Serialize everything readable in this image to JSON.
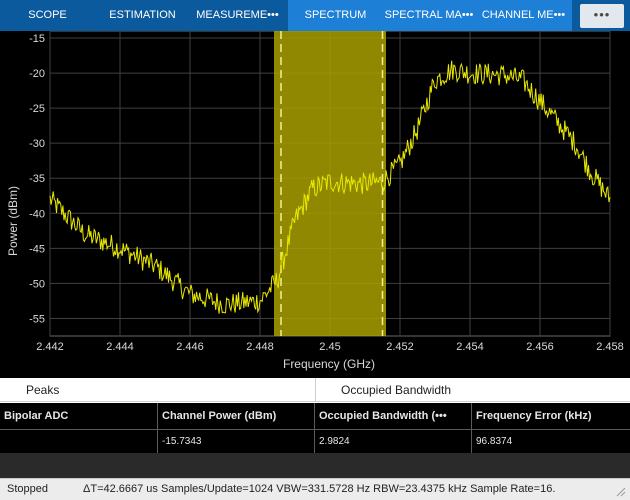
{
  "toolstrip": {
    "tabs": [
      {
        "label": "SCOPE"
      },
      {
        "label": "ESTIMATION"
      },
      {
        "label": "MEASUREME•••"
      },
      {
        "label": "SPECTRUM"
      },
      {
        "label": "SPECTRAL MA•••"
      },
      {
        "label": "CHANNEL ME•••"
      }
    ],
    "overflow_icon": "more-dots-icon"
  },
  "colors": {
    "plot_background": "#000000",
    "trace": "#e8e800",
    "band_fill": "#a8a000",
    "grid": "#404040",
    "tab_active_group": "#1d7fd6",
    "tab_group": "#0c5a9e"
  },
  "chart_data": {
    "type": "line",
    "xlabel": "Frequency (GHz)",
    "ylabel": "Power (dBm)",
    "xlim": [
      2.442,
      2.458
    ],
    "ylim": [
      -57.5,
      -14
    ],
    "x_ticks": [
      "2.442",
      "2.444",
      "2.446",
      "2.448",
      "2.45",
      "2.452",
      "2.454",
      "2.456",
      "2.458"
    ],
    "y_ticks": [
      "-15",
      "-20",
      "-25",
      "-30",
      "-35",
      "-40",
      "-45",
      "-50",
      "-55"
    ],
    "grid": true,
    "occupied_band": {
      "start": 2.4484,
      "end": 2.4516
    },
    "band_markers": [
      2.4486,
      2.4515
    ],
    "series": [
      {
        "x": [
          2.442,
          2.443,
          2.444,
          2.445,
          2.446,
          2.447,
          2.448,
          2.4485,
          2.449,
          2.4495,
          2.45,
          2.451,
          2.4515,
          2.452,
          2.4525,
          2.453,
          2.4535,
          2.454,
          2.455,
          2.4555,
          2.456,
          2.457,
          2.4575,
          2.458
        ],
        "values": [
          -38,
          -43,
          -45,
          -47.5,
          -51.5,
          -53,
          -52.5,
          -49.5,
          -41,
          -36.5,
          -35.5,
          -35.8,
          -35.5,
          -33,
          -28,
          -21,
          -19.5,
          -20,
          -20.3,
          -21,
          -24,
          -30,
          -34.5,
          -38
        ]
      }
    ]
  },
  "measurements_panel": {
    "tabs": [
      "Peaks",
      "Occupied Bandwidth"
    ],
    "columns": [
      "Bipolar ADC",
      "Channel Power (dBm)",
      "Occupied Bandwidth (•••",
      "Frequency Error (kHz)"
    ],
    "row": [
      "",
      "-15.7343",
      "2.9824",
      "96.8374"
    ]
  },
  "status": {
    "state": "Stopped",
    "info": "ΔT=42.6667 us  Samples/Update=1024  VBW=331.5728 Hz  RBW=23.4375 kHz  Sample Rate=16.",
    "grip_icon": "resize-grip-icon"
  }
}
